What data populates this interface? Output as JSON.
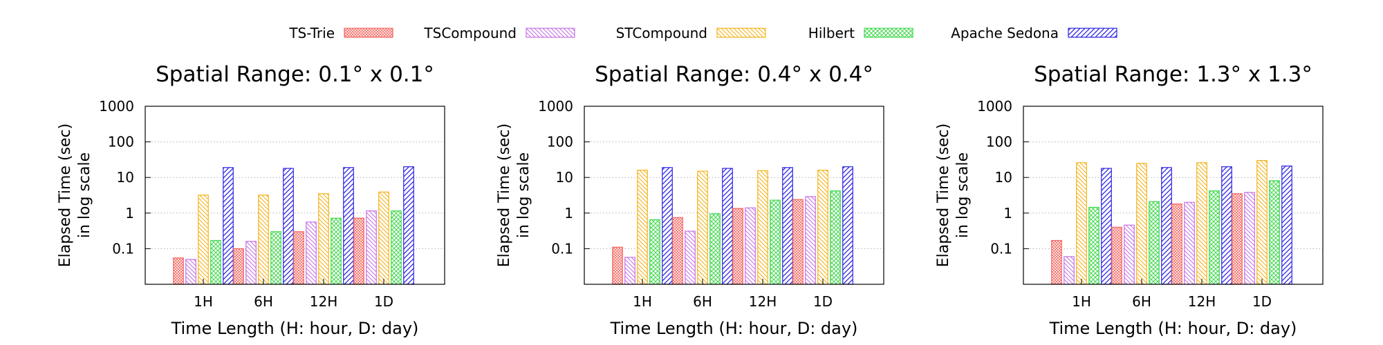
{
  "legend": {
    "position": "top-center",
    "items": [
      {
        "label": "TS-Trie",
        "color": "#f4655f",
        "pattern": "crosshatch-fine"
      },
      {
        "label": "TSCompound",
        "color": "#c671e3",
        "pattern": "diag-left"
      },
      {
        "label": "STCompound",
        "color": "#f5b21a",
        "pattern": "diag-left"
      },
      {
        "label": "Hilbert",
        "color": "#3fd84b",
        "pattern": "crosshatch"
      },
      {
        "label": "Apache Sedona",
        "color": "#2b22e3",
        "pattern": "diag-right"
      }
    ]
  },
  "chart_data": [
    {
      "type": "bar",
      "title": "Spatial Range: 0.1° x 0.1°",
      "xlabel": "Time Length (H: hour, D: day)",
      "ylabel": [
        "Elapsed Time (sec)",
        "in log scale"
      ],
      "yscale": "log",
      "ylim": [
        0.01,
        1000
      ],
      "yticks": [
        "0.1",
        "1",
        "10",
        "100",
        "1000"
      ],
      "grid": "horizontal-dotted",
      "categories": [
        "1H",
        "6H",
        "12H",
        "1D"
      ],
      "series": [
        {
          "name": "TS-Trie",
          "values": [
            0.055,
            0.1,
            0.3,
            0.72
          ]
        },
        {
          "name": "TSCompound",
          "values": [
            0.05,
            0.16,
            0.56,
            1.15
          ]
        },
        {
          "name": "STCompound",
          "values": [
            3.2,
            3.2,
            3.5,
            3.9
          ]
        },
        {
          "name": "Hilbert",
          "values": [
            0.17,
            0.3,
            0.72,
            1.15
          ]
        },
        {
          "name": "Apache Sedona",
          "values": [
            19,
            18,
            19,
            20
          ]
        }
      ]
    },
    {
      "type": "bar",
      "title": "Spatial Range: 0.4° x 0.4°",
      "xlabel": "Time Length (H: hour, D: day)",
      "ylabel": [
        "Elapsed Time (sec)",
        "in log scale"
      ],
      "yscale": "log",
      "ylim": [
        0.01,
        1000
      ],
      "yticks": [
        "0.1",
        "1",
        "10",
        "100",
        "1000"
      ],
      "grid": "horizontal-dotted",
      "categories": [
        "1H",
        "6H",
        "12H",
        "1D"
      ],
      "series": [
        {
          "name": "TS-Trie",
          "values": [
            0.11,
            0.75,
            1.35,
            2.4
          ]
        },
        {
          "name": "TSCompound",
          "values": [
            0.057,
            0.31,
            1.4,
            2.9
          ]
        },
        {
          "name": "STCompound",
          "values": [
            16,
            15,
            15.5,
            16
          ]
        },
        {
          "name": "Hilbert",
          "values": [
            0.65,
            0.95,
            2.3,
            4.2
          ]
        },
        {
          "name": "Apache Sedona",
          "values": [
            19,
            18,
            19,
            20
          ]
        }
      ]
    },
    {
      "type": "bar",
      "title": "Spatial Range: 1.3° x 1.3°",
      "xlabel": "Time Length (H: hour, D: day)",
      "ylabel": [
        "Elapsed Time (sec)",
        "in log scale"
      ],
      "yscale": "log",
      "ylim": [
        0.01,
        1000
      ],
      "yticks": [
        "0.1",
        "1",
        "10",
        "100",
        "1000"
      ],
      "grid": "horizontal-dotted",
      "categories": [
        "1H",
        "6H",
        "12H",
        "1D"
      ],
      "series": [
        {
          "name": "TS-Trie",
          "values": [
            0.17,
            0.4,
            1.8,
            3.5
          ]
        },
        {
          "name": "TSCompound",
          "values": [
            0.06,
            0.46,
            2.0,
            3.8
          ]
        },
        {
          "name": "STCompound",
          "values": [
            26,
            25,
            26,
            30
          ]
        },
        {
          "name": "Hilbert",
          "values": [
            1.45,
            2.1,
            4.2,
            8.1
          ]
        },
        {
          "name": "Apache Sedona",
          "values": [
            18,
            19,
            20,
            21
          ]
        }
      ]
    }
  ]
}
